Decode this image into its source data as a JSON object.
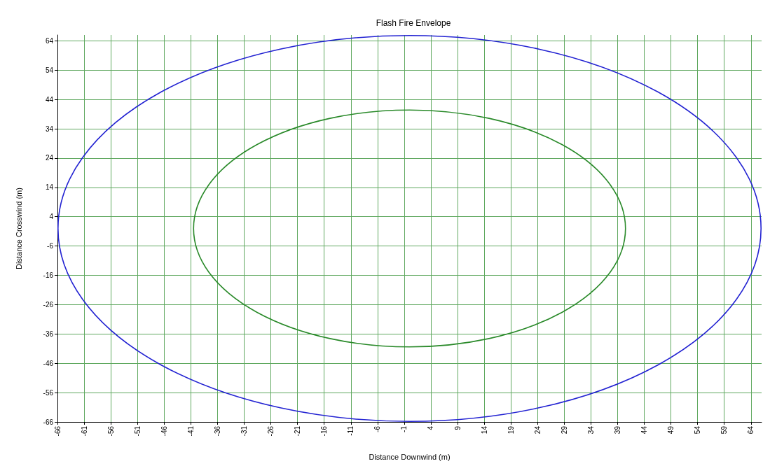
{
  "chart_data": {
    "type": "line",
    "title": "Flash Fire Envelope",
    "xlabel": "Distance Downwind (m)",
    "ylabel": "Distance Crosswind (m)",
    "xlim": [
      -66,
      66
    ],
    "xticks": [
      -66,
      -61,
      -56,
      -51,
      -46,
      -41,
      -36,
      -31,
      -26,
      -21,
      -16,
      -11,
      -6,
      -1,
      4,
      9,
      14,
      19,
      24,
      29,
      34,
      39,
      44,
      49,
      54,
      59,
      64
    ],
    "ylim": [
      -66,
      66
    ],
    "yticks": [
      -66,
      -56,
      -46,
      -36,
      -26,
      -16,
      -6,
      4,
      14,
      24,
      34,
      44,
      54,
      64
    ],
    "grid": true
  }
}
